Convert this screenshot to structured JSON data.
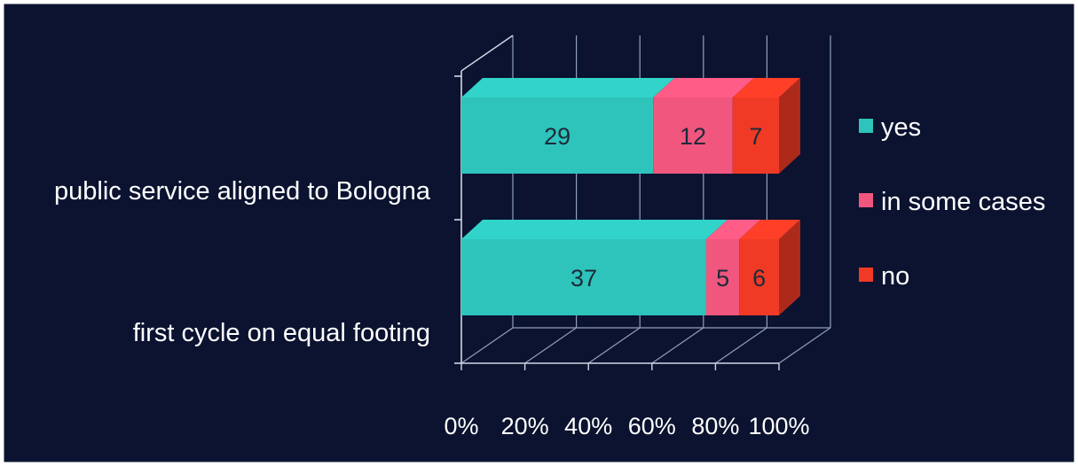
{
  "colors": {
    "background": "#0b1330",
    "frame": "#ffffff",
    "axis": "#cfd8e6",
    "grid": "#8fa0bf",
    "text": "#ffffff",
    "value_text": "#1d2a3a"
  },
  "chart_data": {
    "type": "bar",
    "stacking": "percent",
    "orientation": "horizontal",
    "style": "3d",
    "categories": [
      "public service aligned to Bologna",
      "first cycle on  equal footing"
    ],
    "series": [
      {
        "name": "yes",
        "values": [
          29,
          37
        ],
        "color": "#2ec4bb"
      },
      {
        "name": "in some cases",
        "values": [
          12,
          5
        ],
        "color": "#f0567e"
      },
      {
        "name": "no",
        "values": [
          7,
          6
        ],
        "color": "#f03a25"
      }
    ],
    "value_labels": [
      "29",
      "12",
      "7",
      "37",
      "5",
      "6"
    ],
    "x_ticks": [
      "0%",
      "20%",
      "40%",
      "60%",
      "80%",
      "100%"
    ],
    "xlim": [
      0,
      100
    ],
    "grid": true,
    "legend_position": "right",
    "title": "",
    "xlabel": "",
    "ylabel": ""
  }
}
